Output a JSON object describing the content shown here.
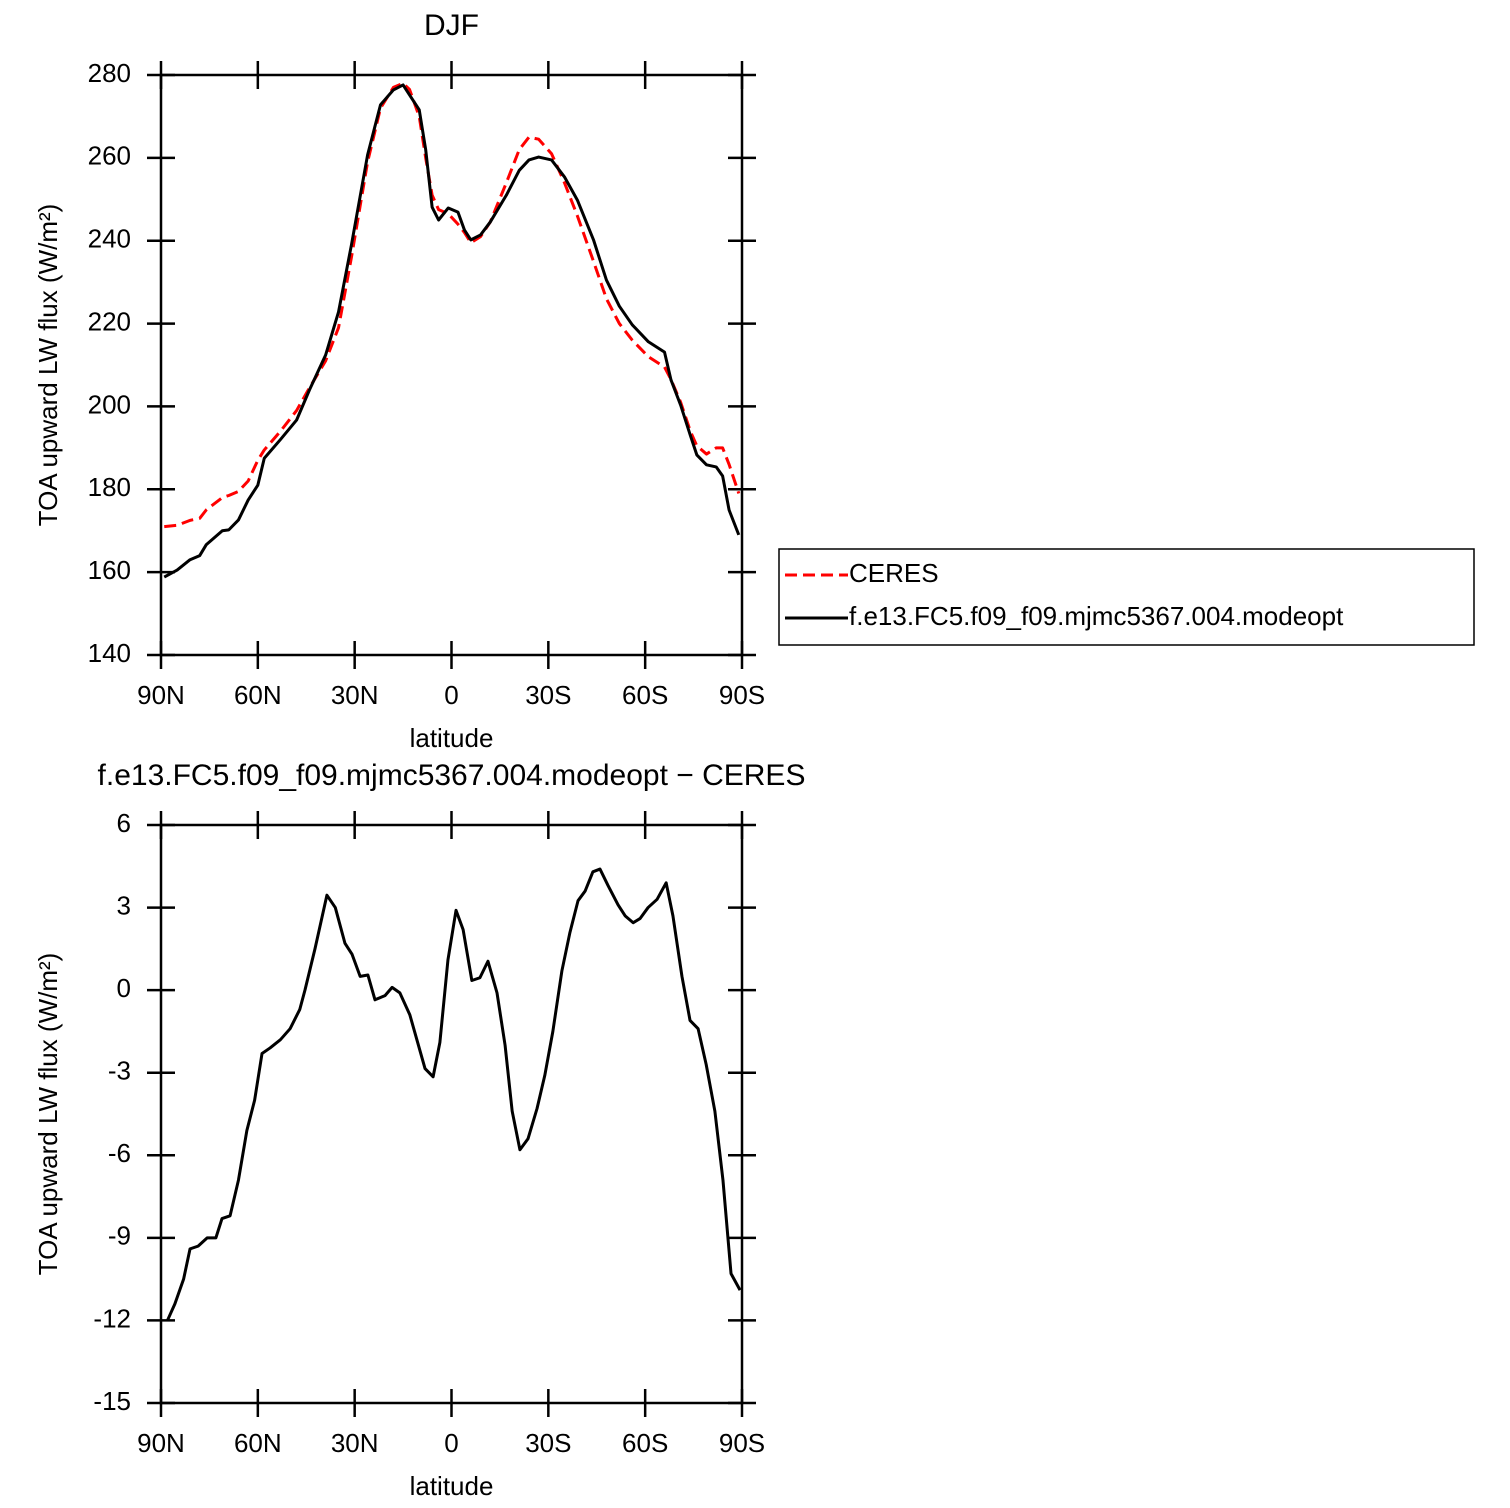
{
  "chart_data": [
    {
      "type": "line",
      "title": "DJF",
      "xlabel": "latitude",
      "ylabel": "TOA upward LW flux (W/m²)",
      "x": [
        89,
        85,
        81,
        78,
        76,
        71,
        69,
        66,
        63,
        60,
        58,
        53,
        48,
        44,
        39,
        35,
        31,
        26,
        22,
        18,
        15,
        13,
        10,
        8,
        6,
        4,
        1,
        -2,
        -4,
        -6,
        -9,
        -12,
        -17,
        -21,
        -24,
        -27,
        -31,
        -35,
        -39,
        -44,
        -48,
        -52,
        -56,
        -61,
        -66,
        -68,
        -71,
        -74,
        -76,
        -79,
        -82,
        -84,
        -86,
        -89
      ],
      "series": [
        {
          "name": "CERES",
          "color": "#ff0000",
          "linestyle": "dashed",
          "values": [
            171,
            171.3,
            172.5,
            173,
            175,
            178,
            178.5,
            179.5,
            182,
            187,
            189.5,
            194,
            199,
            204.5,
            211,
            219,
            236,
            259,
            272,
            277,
            278,
            276.5,
            270,
            260,
            251,
            247.5,
            246.5,
            244,
            242,
            239.5,
            241,
            244.5,
            254,
            262,
            265,
            264.5,
            261,
            254,
            246,
            235,
            226,
            220,
            216,
            212,
            209.5,
            206.5,
            201,
            194,
            190.5,
            188.5,
            190,
            190,
            186,
            179
          ]
        },
        {
          "name": "f.e13.FC5.f09_f09.mjmc5367.004.modeopt",
          "color": "#000000",
          "linestyle": "solid",
          "values": [
            158.8,
            160.5,
            163,
            164,
            166.6,
            170,
            170.2,
            172.6,
            177.4,
            181,
            187.5,
            192,
            196.7,
            204,
            212.4,
            222.8,
            239,
            260.7,
            272.8,
            276.4,
            277.6,
            275.2,
            271.6,
            262,
            248.1,
            245,
            247.9,
            246.9,
            242.6,
            240.2,
            241.4,
            244.5,
            251,
            257,
            259.5,
            260.2,
            259.5,
            255.4,
            249.8,
            240.2,
            230.5,
            224.2,
            219.7,
            215.6,
            213.1,
            206.4,
            200.3,
            193,
            188.3,
            185.9,
            185.4,
            183.2,
            175,
            169
          ]
        }
      ],
      "xlim": [
        90,
        -90
      ],
      "xticks": [
        {
          "value": 90,
          "label": "90N"
        },
        {
          "value": 60,
          "label": "60N"
        },
        {
          "value": 30,
          "label": "30N"
        },
        0,
        {
          "value": -30,
          "label": "30S"
        },
        {
          "value": -60,
          "label": "60S"
        },
        {
          "value": -90,
          "label": "90S"
        }
      ],
      "ylim": [
        140,
        280
      ],
      "yticks": [
        140,
        160,
        180,
        200,
        220,
        240,
        260,
        280
      ],
      "legend": "right"
    },
    {
      "type": "line",
      "title": "f.e13.FC5.f09_f09.mjmc5367.004.modeopt − CERES",
      "xlabel": "latitude",
      "ylabel": "TOA upward LW flux (W/m²)",
      "x": [
        88,
        85.7,
        83,
        81,
        78.5,
        75.7,
        73,
        71.1,
        68.6,
        66,
        63.4,
        61,
        58.7,
        56.2,
        53,
        50,
        47,
        45.4,
        42.3,
        38.6,
        36,
        33,
        30.8,
        28.3,
        25.9,
        23.7,
        20.6,
        18.4,
        16,
        12.9,
        8.2,
        5.7,
        3.6,
        1.1,
        -1.4,
        -3.6,
        -6.3,
        -8.8,
        -11.3,
        -14.1,
        -16.6,
        -18.8,
        -21.2,
        -23.7,
        -26.5,
        -28.9,
        -31.4,
        -34.2,
        -36.7,
        -39.2,
        -41.4,
        -43.8,
        -46,
        -48.5,
        -51.6,
        -53.8,
        -56.3,
        -58.4,
        -60.9,
        -63.7,
        -66.5,
        -68.6,
        -71.4,
        -73.9,
        -76.4,
        -78.9,
        -81.6,
        -84.1,
        -86.6,
        -89.4
      ],
      "series": [
        {
          "color": "#000000",
          "linestyle": "solid",
          "values": [
            -12,
            -11.4,
            -10.5,
            -9.4,
            -9.3,
            -9,
            -9,
            -8.3,
            -8.2,
            -6.9,
            -5.1,
            -4,
            -2.3,
            -2.1,
            -1.8,
            -1.4,
            -0.7,
            0,
            1.5,
            3.45,
            3,
            1.7,
            1.3,
            0.5,
            0.55,
            -0.35,
            -0.2,
            0.1,
            -0.1,
            -0.9,
            -2.85,
            -3.15,
            -1.9,
            1.1,
            2.9,
            2.2,
            0.35,
            0.45,
            1.05,
            -0.1,
            -2,
            -4.4,
            -5.8,
            -5.4,
            -4.3,
            -3.1,
            -1.5,
            0.7,
            2.1,
            3.25,
            3.6,
            4.3,
            4.4,
            3.8,
            3.1,
            2.7,
            2.45,
            2.6,
            3,
            3.3,
            3.9,
            2.7,
            0.5,
            -1.1,
            -1.4,
            -2.7,
            -4.4,
            -6.9,
            -10.3,
            -10.9
          ]
        }
      ],
      "xlim": [
        90,
        -90
      ],
      "xticks": [
        {
          "value": 90,
          "label": "90N"
        },
        {
          "value": 60,
          "label": "60N"
        },
        {
          "value": 30,
          "label": "30N"
        },
        0,
        {
          "value": -30,
          "label": "30S"
        },
        {
          "value": -60,
          "label": "60S"
        },
        {
          "value": -90,
          "label": "90S"
        }
      ],
      "ylim": [
        -15,
        6
      ],
      "yticks": [
        -15,
        -12,
        -9,
        -6,
        -3,
        0,
        3,
        6
      ]
    }
  ]
}
